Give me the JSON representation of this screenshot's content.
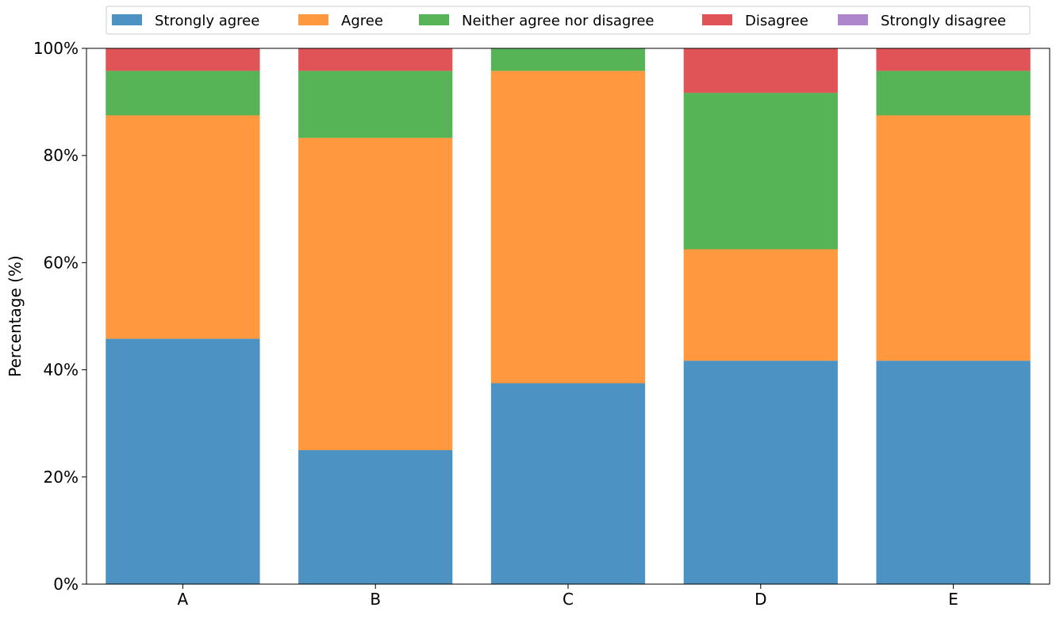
{
  "chart_data": {
    "type": "bar",
    "stacked": true,
    "categories": [
      "A",
      "B",
      "C",
      "D",
      "E"
    ],
    "ylabel": "Percentage (%)",
    "xlabel": "",
    "ylim": [
      0,
      100
    ],
    "yticks": [
      "0%",
      "20%",
      "40%",
      "60%",
      "80%",
      "100%"
    ],
    "ytick_values": [
      0,
      20,
      40,
      60,
      80,
      100
    ],
    "grid": false,
    "legend_placement": "top",
    "series": [
      {
        "name": "Strongly agree",
        "color": "#4c92c3",
        "values": [
          45.8,
          25.0,
          37.5,
          41.7,
          41.7
        ]
      },
      {
        "name": "Agree",
        "color": "#ff983e",
        "values": [
          41.7,
          58.3,
          58.3,
          20.8,
          45.8
        ]
      },
      {
        "name": "Neither agree nor disagree",
        "color": "#56b356",
        "values": [
          8.3,
          12.5,
          4.2,
          29.2,
          8.3
        ]
      },
      {
        "name": "Disagree",
        "color": "#e05356",
        "values": [
          4.2,
          4.2,
          0.0,
          8.3,
          4.2
        ]
      },
      {
        "name": "Strongly disagree",
        "color": "#ad86cc",
        "values": [
          0.0,
          0.0,
          0.0,
          0.0,
          0.0
        ]
      }
    ]
  }
}
